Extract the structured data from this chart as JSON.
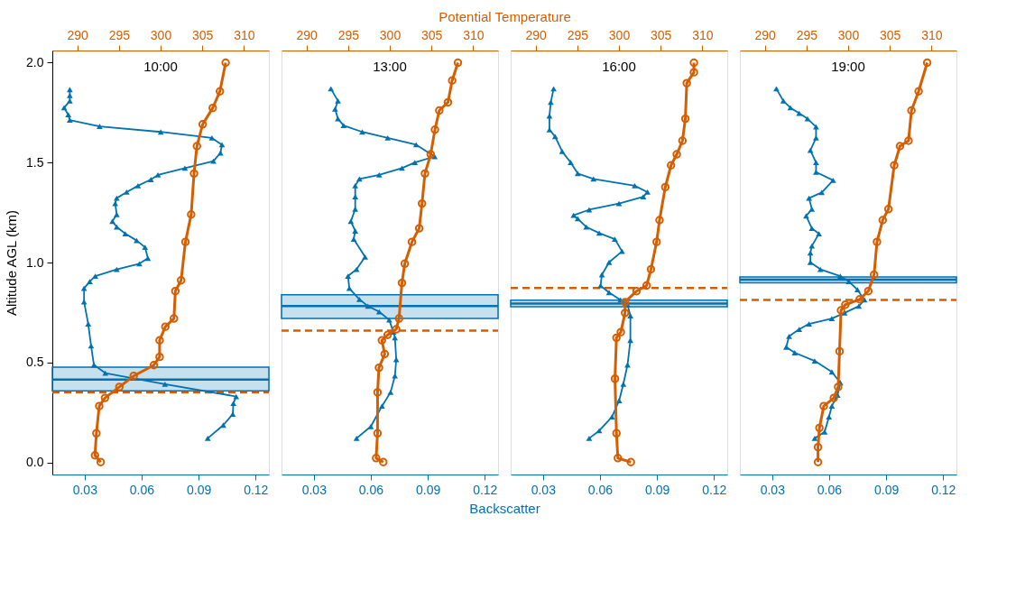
{
  "chart_data": [
    {
      "type": "line",
      "title": "10:00",
      "ylabel": "Altitude AGL (km)",
      "xlim": [
        0.013,
        0.127
      ],
      "xticks": [
        0.03,
        0.06,
        0.09,
        0.12
      ],
      "x2lim": [
        287,
        313
      ],
      "x2ticks": [
        290,
        295,
        300,
        305,
        310
      ],
      "ylim": [
        -0.06,
        2.06
      ],
      "yticks": [
        {
          "value": 0,
          "label": "0.0"
        },
        {
          "value": 0.5,
          "label": "0.5"
        },
        {
          "value": 1,
          "label": "1.0"
        },
        {
          "value": 1.5,
          "label": "1.5"
        },
        {
          "value": 2,
          "label": "2.0"
        }
      ],
      "series": [
        {
          "color": "#0072b2",
          "marker": "triangle",
          "line_style": "solid",
          "x": [
            0.0948,
            0.103,
            0.108,
            0.1083,
            0.1098,
            0.0723,
            0.0409,
            0.0349,
            0.0334,
            0.0319,
            0.0297,
            0.0297,
            0.0327,
            0.0356,
            0.0469,
            0.0588,
            0.0633,
            0.0618,
            0.0574,
            0.0514,
            0.0469,
            0.0446,
            0.0469,
            0.0461,
            0.0469,
            0.0521,
            0.0581,
            0.0649,
            0.0686,
            0.0828,
            0.0978,
            0.1015,
            0.1023,
            0.097,
            0.0701,
            0.0379,
            0.0222,
            0.0214,
            0.0192,
            0.0222,
            0.0222,
            0.0222
          ],
          "values": [
            0.121,
            0.187,
            0.242,
            0.296,
            0.33,
            0.392,
            0.447,
            0.488,
            0.583,
            0.693,
            0.803,
            0.871,
            0.905,
            0.932,
            0.966,
            0.994,
            1.021,
            1.076,
            1.11,
            1.144,
            1.178,
            1.206,
            1.24,
            1.295,
            1.322,
            1.352,
            1.384,
            1.415,
            1.438,
            1.472,
            1.507,
            1.548,
            1.589,
            1.623,
            1.653,
            1.681,
            1.712,
            1.739,
            1.774,
            1.808,
            1.835,
            1.865
          ]
        },
        {
          "color": "#d55e00",
          "marker": "circle",
          "line_style": "solid",
          "axis": "x2",
          "x": [
            292.81,
            292.12,
            292.29,
            292.63,
            293.32,
            295.05,
            296.77,
            299.19,
            299.88,
            299.88,
            300.57,
            301.6,
            301.77,
            302.46,
            302.98,
            303.67,
            304.01,
            304.36,
            305.05,
            306.26,
            307.12,
            307.81
          ],
          "values": [
            0.002,
            0.036,
            0.146,
            0.282,
            0.323,
            0.378,
            0.433,
            0.487,
            0.528,
            0.611,
            0.679,
            0.72,
            0.857,
            0.911,
            1.103,
            1.24,
            1.445,
            1.582,
            1.691,
            1.773,
            1.856,
            1.999
          ]
        }
      ],
      "bands": [
        {
          "axis": "y",
          "from": 0.358,
          "to": 0.477,
          "color": "#0072b2"
        }
      ],
      "ref_lines": [
        {
          "axis": "y",
          "value": 0.415,
          "color": "#0072b2",
          "line_style": "solid"
        },
        {
          "axis": "y",
          "value": 0.351,
          "color": "#d55e00",
          "line_style": "dashed"
        }
      ]
    },
    {
      "type": "line",
      "title": "13:00",
      "tick_labels": "x",
      "xlabel": "Backscatter",
      "x2label": "Potential Temperature",
      "xlim": [
        0.013,
        0.127
      ],
      "xticks": [
        0.03,
        0.06,
        0.09,
        0.12
      ],
      "x2lim": [
        287,
        313
      ],
      "x2ticks": [
        290,
        295,
        300,
        305,
        310
      ],
      "ylim": [
        -0.06,
        2.06
      ],
      "series": [
        {
          "color": "#0072b2",
          "marker": "triangle",
          "line_style": "solid",
          "x": [
            0.0525,
            0.06,
            0.0659,
            0.0704,
            0.0727,
            0.0734,
            0.0727,
            0.0719,
            0.0697,
            0.0644,
            0.0585,
            0.054,
            0.0487,
            0.048,
            0.0525,
            0.057,
            0.051,
            0.0518,
            0.0495,
            0.0518,
            0.0518,
            0.0518,
            0.054,
            0.0644,
            0.0764,
            0.0832,
            0.0936,
            0.0839,
            0.0689,
            0.0555,
            0.0457,
            0.0427,
            0.0412,
            0.0427,
            0.039
          ],
          "values": [
            0.121,
            0.18,
            0.282,
            0.351,
            0.433,
            0.515,
            0.624,
            0.652,
            0.713,
            0.754,
            0.782,
            0.816,
            0.871,
            0.932,
            0.966,
            1.028,
            1.117,
            1.158,
            1.206,
            1.267,
            1.329,
            1.384,
            1.418,
            1.438,
            1.472,
            1.5,
            1.53,
            1.589,
            1.623,
            1.653,
            1.685,
            1.719,
            1.767,
            1.808,
            1.869
          ]
        },
        {
          "color": "#d55e00",
          "marker": "circle",
          "line_style": "solid",
          "axis": "x2",
          "x": [
            299.22,
            298.36,
            298.53,
            298.53,
            298.7,
            299.39,
            299.05,
            299.74,
            300.77,
            301.11,
            301.46,
            301.8,
            302.66,
            303.53,
            303.87,
            304.22,
            304.91,
            305.42,
            305.94,
            306.98,
            307.49,
            308.18
          ],
          "values": [
            0.002,
            0.022,
            0.146,
            0.351,
            0.474,
            0.542,
            0.611,
            0.638,
            0.666,
            0.72,
            0.898,
            0.994,
            1.103,
            1.171,
            1.295,
            1.445,
            1.541,
            1.664,
            1.76,
            1.801,
            1.91,
            1.999
          ]
        }
      ],
      "bands": [
        {
          "axis": "y",
          "from": 0.72,
          "to": 0.839,
          "color": "#0072b2"
        }
      ],
      "ref_lines": [
        {
          "axis": "y",
          "value": 0.782,
          "color": "#0072b2",
          "line_style": "solid"
        },
        {
          "axis": "y",
          "value": 0.659,
          "color": "#d55e00",
          "line_style": "dashed"
        }
      ]
    },
    {
      "type": "line",
      "title": "16:00",
      "tick_labels": "x",
      "xlim": [
        0.013,
        0.127
      ],
      "xticks": [
        0.03,
        0.06,
        0.09,
        0.12
      ],
      "x2lim": [
        287,
        313
      ],
      "x2ticks": [
        290,
        295,
        300,
        305,
        310
      ],
      "ylim": [
        -0.06,
        2.06
      ],
      "series": [
        {
          "color": "#0072b2",
          "marker": "triangle",
          "line_style": "solid",
          "x": [
            0.0543,
            0.0596,
            0.0663,
            0.0701,
            0.0723,
            0.0745,
            0.076,
            0.076,
            0.0745,
            0.0708,
            0.0648,
            0.0603,
            0.061,
            0.0648,
            0.0716,
            0.0678,
            0.0596,
            0.0528,
            0.0483,
            0.0461,
            0.0543,
            0.07,
            0.0828,
            0.085,
            0.0783,
            0.0566,
            0.0483,
            0.0446,
            0.0401,
            0.0364,
            0.0334,
            0.0334,
            0.0341,
            0.0356
          ],
          "values": [
            0.121,
            0.159,
            0.228,
            0.31,
            0.392,
            0.488,
            0.611,
            0.734,
            0.789,
            0.813,
            0.85,
            0.884,
            0.939,
            1.001,
            1.056,
            1.117,
            1.147,
            1.178,
            1.219,
            1.236,
            1.264,
            1.295,
            1.329,
            1.352,
            1.384,
            1.418,
            1.445,
            1.5,
            1.555,
            1.63,
            1.664,
            1.733,
            1.801,
            1.869
          ]
        },
        {
          "color": "#d55e00",
          "marker": "circle",
          "line_style": "solid",
          "axis": "x2",
          "x": [
            301.43,
            299.87,
            299.7,
            299.52,
            299.7,
            300.22,
            300.73,
            300.73,
            302.11,
            303.32,
            303.84,
            304.52,
            304.87,
            305.56,
            306.25,
            306.94,
            307.62,
            307.97,
            308.14,
            309.0,
            309.0
          ],
          "values": [
            0.002,
            0.022,
            0.146,
            0.419,
            0.624,
            0.652,
            0.748,
            0.802,
            0.857,
            0.885,
            0.966,
            1.103,
            1.212,
            1.377,
            1.486,
            1.541,
            1.609,
            1.719,
            1.897,
            1.951,
            1.999
          ]
        }
      ],
      "bands": [
        {
          "axis": "y",
          "from": 0.779,
          "to": 0.812,
          "color": "#0072b2"
        }
      ],
      "ref_lines": [
        {
          "axis": "y",
          "value": 0.795,
          "color": "#0072b2",
          "line_style": "solid"
        },
        {
          "axis": "y",
          "value": 0.873,
          "color": "#d55e00",
          "line_style": "dashed"
        }
      ]
    },
    {
      "type": "line",
      "title": "19:00",
      "tick_labels": "x",
      "xlim": [
        0.013,
        0.127
      ],
      "xticks": [
        0.03,
        0.06,
        0.09,
        0.12
      ],
      "x2lim": [
        287,
        313
      ],
      "x2ticks": [
        290,
        295,
        300,
        305,
        310
      ],
      "ylim": [
        -0.06,
        2.06
      ],
      "series": [
        {
          "color": "#0072b2",
          "marker": "triangle",
          "line_style": "solid",
          "x": [
            0.0524,
            0.0576,
            0.0599,
            0.0614,
            0.0644,
            0.0659,
            0.0614,
            0.0524,
            0.0419,
            0.0374,
            0.0389,
            0.0442,
            0.0494,
            0.0614,
            0.0681,
            0.0756,
            0.0786,
            0.0749,
            0.0704,
            0.0659,
            0.0554,
            0.0501,
            0.0501,
            0.0509,
            0.0546,
            0.0509,
            0.0479,
            0.0509,
            0.0494,
            0.0561,
            0.0621,
            0.0531,
            0.0531,
            0.0501,
            0.0531,
            0.0531,
            0.0486,
            0.0442,
            0.0396,
            0.0359,
            0.0322
          ],
          "values": [
            0.121,
            0.153,
            0.228,
            0.282,
            0.337,
            0.399,
            0.453,
            0.508,
            0.549,
            0.577,
            0.631,
            0.666,
            0.693,
            0.72,
            0.748,
            0.782,
            0.813,
            0.864,
            0.905,
            0.932,
            0.966,
            1.001,
            1.048,
            1.083,
            1.144,
            1.171,
            1.233,
            1.267,
            1.322,
            1.35,
            1.411,
            1.452,
            1.5,
            1.561,
            1.623,
            1.678,
            1.719,
            1.746,
            1.774,
            1.808,
            1.869
          ]
        },
        {
          "color": "#d55e00",
          "marker": "circle",
          "line_style": "solid",
          "axis": "x2",
          "x": [
            296.38,
            296.38,
            296.55,
            297.07,
            298.28,
            298.8,
            298.97,
            299.14,
            299.66,
            301.38,
            302.42,
            303.11,
            303.46,
            304.15,
            304.84,
            305.53,
            306.22,
            307.25,
            307.6,
            308.46,
            309.49
          ],
          "values": [
            0.002,
            0.077,
            0.173,
            0.282,
            0.323,
            0.378,
            0.556,
            0.761,
            0.789,
            0.816,
            0.857,
            0.939,
            1.103,
            1.212,
            1.267,
            1.486,
            1.582,
            1.609,
            1.76,
            1.856,
            1.999
          ]
        }
      ],
      "bands": [
        {
          "axis": "y",
          "from": 0.898,
          "to": 0.928,
          "color": "#0072b2"
        }
      ],
      "ref_lines": [
        {
          "axis": "y",
          "value": 0.914,
          "color": "#0072b2",
          "line_style": "solid"
        },
        {
          "axis": "y",
          "value": 0.813,
          "color": "#d55e00",
          "line_style": "dashed"
        }
      ]
    }
  ]
}
